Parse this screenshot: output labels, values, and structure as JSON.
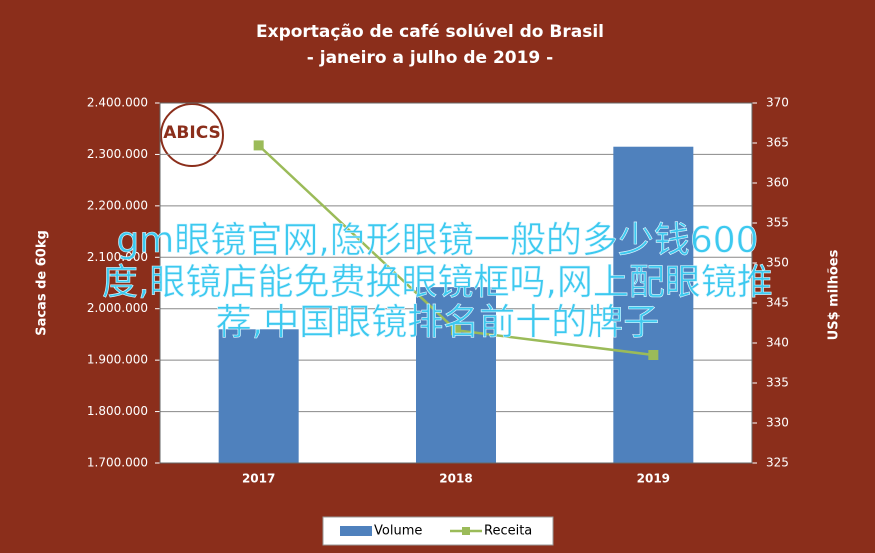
{
  "chart_data": {
    "type": "bar-line",
    "title": "Exportação de café solúvel do Brasil",
    "subtitle": "- janeiro a julho de 2019 -",
    "y_label": "Sacas de 60kg",
    "y2_label": "US$ milhões",
    "categories": [
      "2017",
      "2018",
      "2019"
    ],
    "series": [
      {
        "name": "Volume",
        "color": "#4f81bd",
        "type": "bar",
        "axis": "y",
        "values": [
          1960000,
          2042000,
          2315000
        ]
      },
      {
        "name": "Receita",
        "color": "#9bbb59",
        "type": "line",
        "axis": "y2",
        "values": [
          364.7,
          341.6,
          338.5
        ]
      }
    ],
    "ylim": [
      1700000,
      2400000
    ],
    "yticks": [
      {
        "value": 1700000,
        "label": "1.700.000"
      },
      {
        "value": 1800000,
        "label": "1.800.000"
      },
      {
        "value": 1900000,
        "label": "1.900.000"
      },
      {
        "value": 2000000,
        "label": "2.000.000"
      },
      {
        "value": 2100000,
        "label": "2.100.000"
      },
      {
        "value": 2200000,
        "label": "2.200.000"
      },
      {
        "value": 2300000,
        "label": "2.300.000"
      },
      {
        "value": 2400000,
        "label": "2.400.000"
      }
    ],
    "y2lim": [
      325,
      370
    ],
    "y2ticks": [
      325,
      330,
      335,
      340,
      345,
      350,
      355,
      360,
      365,
      370
    ],
    "logo": "ABICS",
    "legend": "bottom"
  },
  "overlay_text": [
    "gm眼镜官网,隐形眼镜一般的多少钱600",
    "度,眼镜店能免费换眼镜框吗,网上配眼镜推",
    "荐,中国眼镜排名前十的牌子"
  ]
}
